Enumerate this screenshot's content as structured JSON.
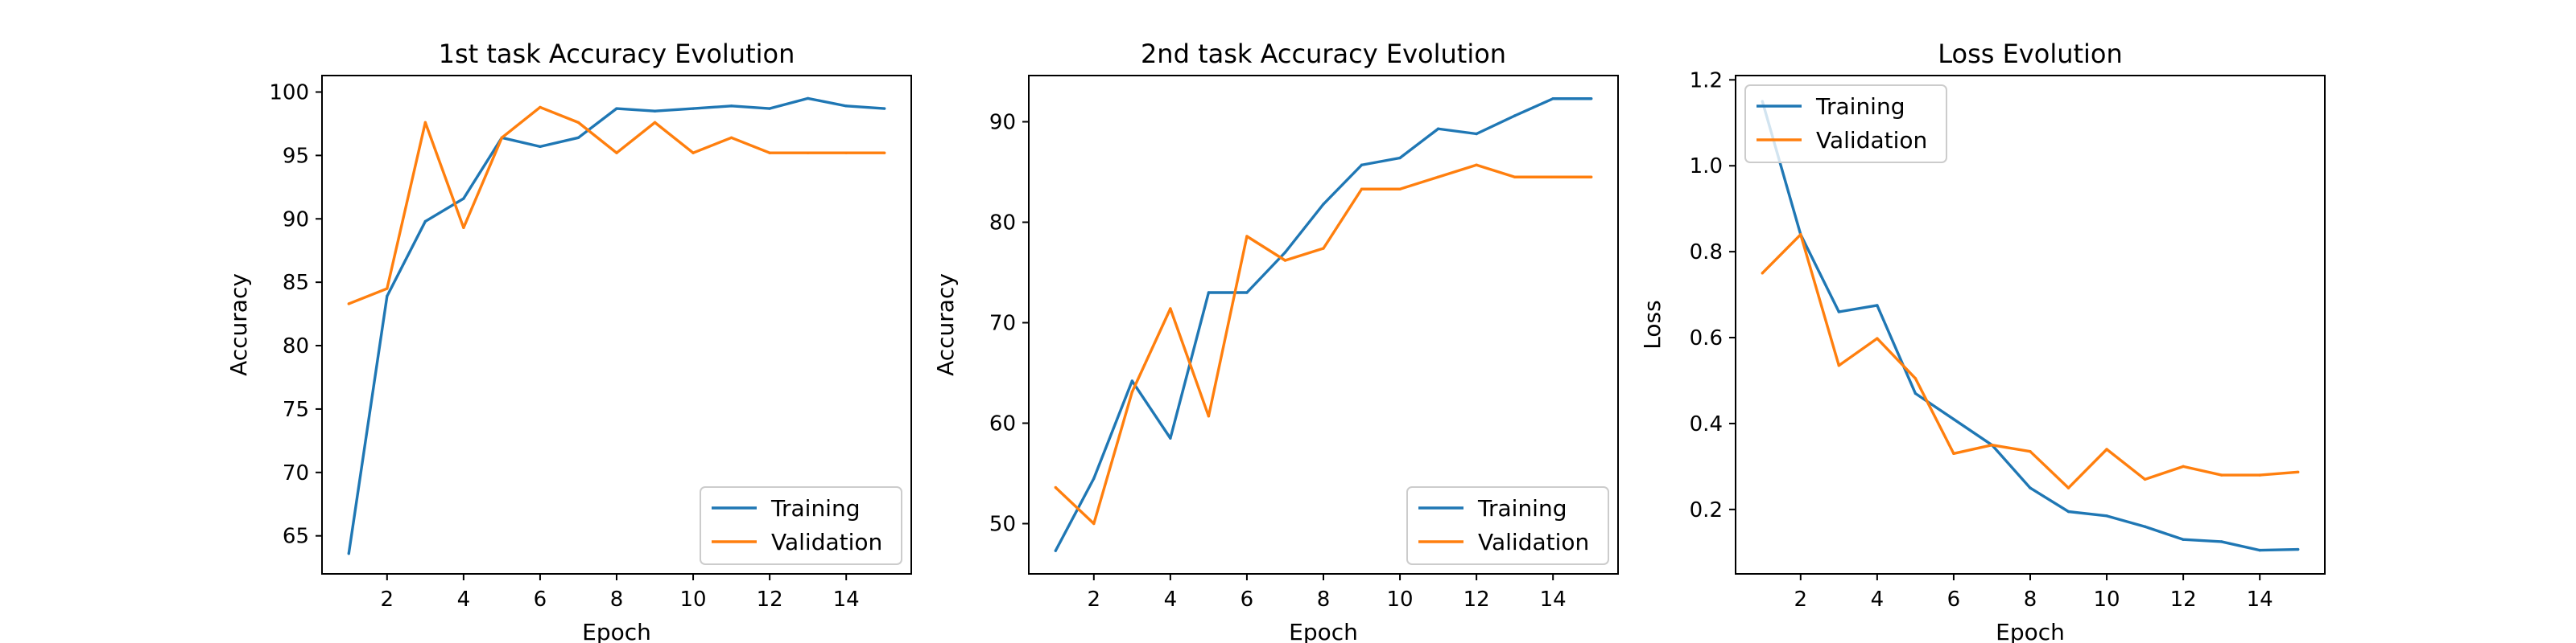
{
  "figure": {
    "background": "#ffffff"
  },
  "colors": {
    "training": "#1f77b4",
    "validation": "#ff7f0e"
  },
  "chart_data": [
    {
      "type": "line",
      "title": "1st task Accuracy Evolution",
      "xlabel": "Epoch",
      "ylabel": "Accuracy",
      "xlim": [
        0.3,
        15.7
      ],
      "ylim": [
        62.0,
        101.3
      ],
      "xticks": [
        2,
        4,
        6,
        8,
        10,
        12,
        14
      ],
      "yticks": [
        65,
        70,
        75,
        80,
        85,
        90,
        95,
        100
      ],
      "grid": false,
      "legend_position": "lower-right",
      "x": [
        1,
        2,
        3,
        4,
        5,
        6,
        7,
        8,
        9,
        10,
        11,
        12,
        13,
        14,
        15
      ],
      "series": [
        {
          "name": "Training",
          "color": "#1f77b4",
          "values": [
            63.6,
            83.9,
            89.8,
            91.6,
            96.4,
            95.7,
            96.4,
            98.7,
            98.5,
            98.7,
            98.9,
            98.7,
            99.5,
            98.9,
            98.7
          ]
        },
        {
          "name": "Validation",
          "color": "#ff7f0e",
          "values": [
            83.3,
            84.5,
            97.6,
            89.3,
            96.4,
            98.8,
            97.6,
            95.2,
            97.6,
            95.2,
            96.4,
            95.2,
            95.2,
            95.2,
            95.2
          ]
        }
      ]
    },
    {
      "type": "line",
      "title": "2nd task Accuracy Evolution",
      "xlabel": "Epoch",
      "ylabel": "Accuracy",
      "xlim": [
        0.3,
        15.7
      ],
      "ylim": [
        45.0,
        94.6
      ],
      "xticks": [
        2,
        4,
        6,
        8,
        10,
        12,
        14
      ],
      "yticks": [
        50,
        60,
        70,
        80,
        90
      ],
      "grid": false,
      "legend_position": "lower-right",
      "x": [
        1,
        2,
        3,
        4,
        5,
        6,
        7,
        8,
        9,
        10,
        11,
        12,
        13,
        14,
        15
      ],
      "series": [
        {
          "name": "Training",
          "color": "#1f77b4",
          "values": [
            47.3,
            54.5,
            64.2,
            58.5,
            73.0,
            73.0,
            77.0,
            81.8,
            85.7,
            86.4,
            89.3,
            88.8,
            90.6,
            92.3,
            92.3
          ]
        },
        {
          "name": "Validation",
          "color": "#ff7f0e",
          "values": [
            53.6,
            50.0,
            63.1,
            71.4,
            60.7,
            78.6,
            76.2,
            77.4,
            83.3,
            83.3,
            84.5,
            85.7,
            84.5,
            84.5,
            84.5
          ]
        }
      ]
    },
    {
      "type": "line",
      "title": "Loss Evolution",
      "xlabel": "Epoch",
      "ylabel": "Loss",
      "xlim": [
        0.3,
        15.7
      ],
      "ylim": [
        0.05,
        1.21
      ],
      "xticks": [
        2,
        4,
        6,
        8,
        10,
        12,
        14
      ],
      "yticks": [
        0.2,
        0.4,
        0.6,
        0.8,
        1.0,
        1.2
      ],
      "ytick_labels": [
        "0.2",
        "0.4",
        "0.6",
        "0.8",
        "1.0",
        "1.2"
      ],
      "grid": false,
      "legend_position": "upper-left",
      "x": [
        1,
        2,
        3,
        4,
        5,
        6,
        7,
        8,
        9,
        10,
        11,
        12,
        13,
        14,
        15
      ],
      "series": [
        {
          "name": "Training",
          "color": "#1f77b4",
          "values": [
            1.15,
            0.84,
            0.66,
            0.675,
            0.47,
            0.41,
            0.35,
            0.25,
            0.195,
            0.185,
            0.16,
            0.13,
            0.125,
            0.105,
            0.107
          ]
        },
        {
          "name": "Validation",
          "color": "#ff7f0e",
          "values": [
            0.75,
            0.84,
            0.535,
            0.598,
            0.505,
            0.33,
            0.35,
            0.335,
            0.25,
            0.34,
            0.27,
            0.3,
            0.28,
            0.28,
            0.287
          ]
        }
      ]
    }
  ]
}
